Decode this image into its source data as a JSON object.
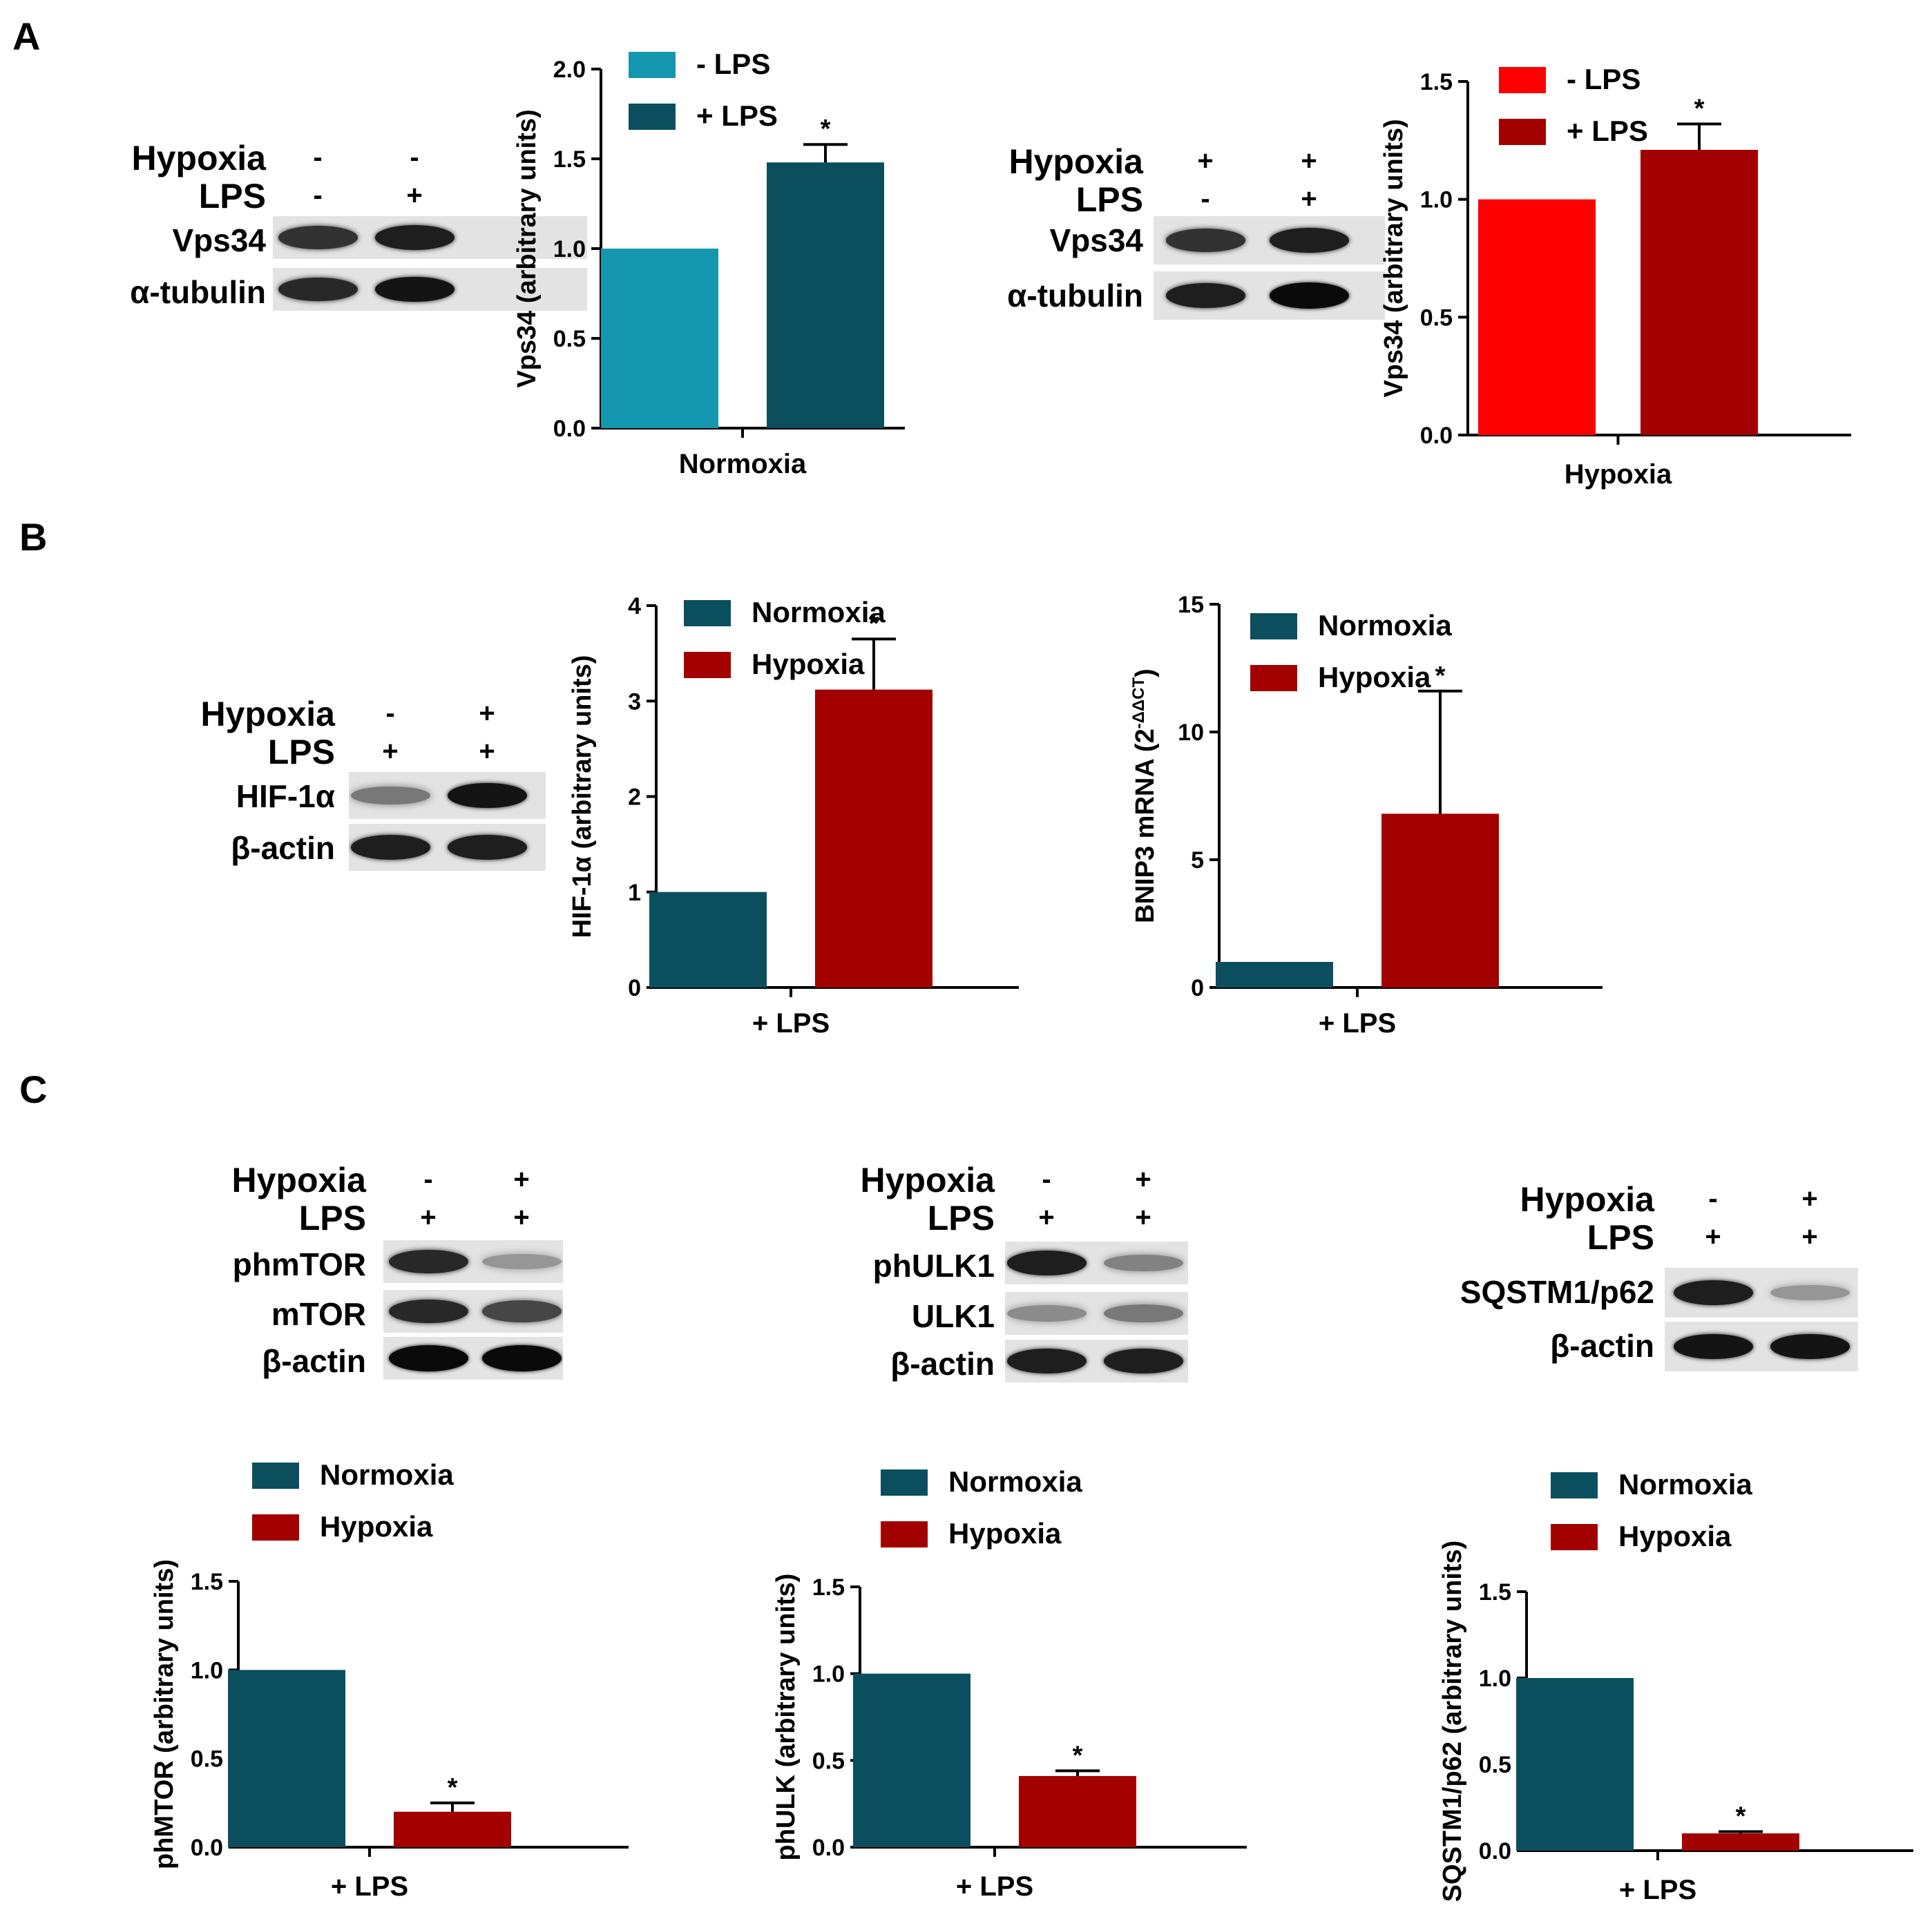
{
  "panels": {
    "A": "A",
    "B": "B",
    "C": "C"
  },
  "blots": [
    {
      "id": "blotA1",
      "conditions": [
        {
          "label": "Hypoxia",
          "signs": [
            "-",
            "-"
          ]
        },
        {
          "label": "LPS",
          "signs": [
            "-",
            "+"
          ]
        }
      ],
      "lanes": [
        {
          "label": "Vps34",
          "bands": [
            0.8,
            0.9
          ]
        },
        {
          "label": "α-tubulin",
          "bands": [
            0.85,
            0.95
          ]
        }
      ]
    },
    {
      "id": "blotA2",
      "conditions": [
        {
          "label": "Hypoxia",
          "signs": [
            "+",
            "+"
          ]
        },
        {
          "label": "LPS",
          "signs": [
            "-",
            "+"
          ]
        }
      ],
      "lanes": [
        {
          "label": "Vps34",
          "bands": [
            0.8,
            0.9
          ]
        },
        {
          "label": "α-tubulin",
          "bands": [
            0.9,
            1.0
          ]
        }
      ]
    },
    {
      "id": "blotB",
      "conditions": [
        {
          "label": "Hypoxia",
          "signs": [
            "-",
            "+"
          ]
        },
        {
          "label": "LPS",
          "signs": [
            "+",
            "+"
          ]
        }
      ],
      "lanes": [
        {
          "label": "HIF-1α",
          "bands": [
            0.45,
            0.95
          ]
        },
        {
          "label": "β-actin",
          "bands": [
            0.9,
            0.9
          ]
        }
      ]
    },
    {
      "id": "blotC1",
      "conditions": [
        {
          "label": "Hypoxia",
          "signs": [
            "-",
            "+"
          ]
        },
        {
          "label": "LPS",
          "signs": [
            "+",
            "+"
          ]
        }
      ],
      "lanes": [
        {
          "label": "phmTOR",
          "bands": [
            0.85,
            0.3
          ]
        },
        {
          "label": "mTOR",
          "bands": [
            0.85,
            0.7
          ]
        },
        {
          "label": "β-actin",
          "bands": [
            1.0,
            1.0
          ]
        }
      ]
    },
    {
      "id": "blotC2",
      "conditions": [
        {
          "label": "Hypoxia",
          "signs": [
            "-",
            "+"
          ]
        },
        {
          "label": "LPS",
          "signs": [
            "+",
            "+"
          ]
        }
      ],
      "lanes": [
        {
          "label": "phULK1",
          "bands": [
            0.9,
            0.4
          ]
        },
        {
          "label": "ULK1",
          "bands": [
            0.35,
            0.45
          ]
        },
        {
          "label": "β-actin",
          "bands": [
            0.9,
            0.9
          ]
        }
      ]
    },
    {
      "id": "blotC3",
      "conditions": [
        {
          "label": "Hypoxia",
          "signs": [
            "-",
            "+"
          ]
        },
        {
          "label": "LPS",
          "signs": [
            "+",
            "+"
          ]
        }
      ],
      "lanes": [
        {
          "label": "SQSTM1/p62",
          "bands": [
            0.9,
            0.3
          ]
        },
        {
          "label": "β-actin",
          "bands": [
            0.95,
            0.95
          ]
        }
      ]
    }
  ],
  "chart_data": [
    {
      "id": "chartA1",
      "type": "bar",
      "xlabel": "Normoxia",
      "ylabel": "Vps34 (arbitrary units)",
      "ylim": [
        0,
        2.0
      ],
      "yticks": [
        "0.0",
        "0.5",
        "1.0",
        "1.5",
        "2.0"
      ],
      "tick_values": [
        0,
        0.5,
        1.0,
        1.5,
        2.0
      ],
      "bars": [
        {
          "name": "- LPS",
          "value": 1.0,
          "error": 0,
          "color": "#1597b0",
          "sig": ""
        },
        {
          "name": "+ LPS",
          "value": 1.48,
          "error": 0.1,
          "color": "#0b4f5e",
          "sig": "*"
        }
      ]
    },
    {
      "id": "chartA2",
      "type": "bar",
      "xlabel": "Hypoxia",
      "ylabel": "Vps34 (arbitrary units)",
      "ylim": [
        0,
        1.5
      ],
      "yticks": [
        "0.0",
        "0.5",
        "1.0",
        "1.5"
      ],
      "tick_values": [
        0,
        0.5,
        1.0,
        1.5
      ],
      "bars": [
        {
          "name": "- LPS",
          "value": 1.0,
          "error": 0,
          "color": "#ff0000",
          "sig": ""
        },
        {
          "name": "+ LPS",
          "value": 1.21,
          "error": 0.11,
          "color": "#a30000",
          "sig": "*"
        }
      ]
    },
    {
      "id": "chartB1",
      "type": "bar",
      "xlabel": "+ LPS",
      "ylabel": "HIF-1α (arbitrary units)",
      "ylim": [
        0,
        4
      ],
      "yticks": [
        "0",
        "1",
        "2",
        "3",
        "4"
      ],
      "tick_values": [
        0,
        1,
        2,
        3,
        4
      ],
      "bars": [
        {
          "name": "Normoxia",
          "value": 1.0,
          "error": 0,
          "color": "#0b4f5e",
          "sig": ""
        },
        {
          "name": "Hypoxia",
          "value": 3.12,
          "error": 0.53,
          "color": "#a30000",
          "sig": "*"
        }
      ]
    },
    {
      "id": "chartB2",
      "type": "bar",
      "xlabel": "+ LPS",
      "ylabel": "BNIP3 mRNA (2",
      "ylabel_sup": "-ΔΔCT",
      "ylabel_end": ")",
      "ylim": [
        0,
        15
      ],
      "yticks": [
        "0",
        "5",
        "10",
        "15"
      ],
      "tick_values": [
        0,
        5,
        10,
        15
      ],
      "bars": [
        {
          "name": "Normoxia",
          "value": 1.0,
          "error": 0,
          "color": "#0b4f5e",
          "sig": ""
        },
        {
          "name": "Hypoxia",
          "value": 6.8,
          "error": 4.8,
          "color": "#a30000",
          "sig": "*"
        }
      ]
    },
    {
      "id": "chartC1",
      "type": "bar",
      "xlabel": "+ LPS",
      "ylabel": "phMTOR (arbitrary units)",
      "ylim": [
        0,
        1.5
      ],
      "yticks": [
        "0.0",
        "0.5",
        "1.0",
        "1.5"
      ],
      "tick_values": [
        0,
        0.5,
        1.0,
        1.5
      ],
      "bars": [
        {
          "name": "Normoxia",
          "value": 1.0,
          "error": 0,
          "color": "#0b4f5e",
          "sig": ""
        },
        {
          "name": "Hypoxia",
          "value": 0.2,
          "error": 0.05,
          "color": "#a30000",
          "sig": "*"
        }
      ]
    },
    {
      "id": "chartC2",
      "type": "bar",
      "xlabel": "+ LPS",
      "ylabel": "phULK (arbitrary units)",
      "ylim": [
        0,
        1.5
      ],
      "yticks": [
        "0.0",
        "0.5",
        "1.0",
        "1.5"
      ],
      "tick_values": [
        0,
        0.5,
        1.0,
        1.5
      ],
      "bars": [
        {
          "name": "Normoxia",
          "value": 1.0,
          "error": 0,
          "color": "#0b4f5e",
          "sig": ""
        },
        {
          "name": "Hypoxia",
          "value": 0.41,
          "error": 0.03,
          "color": "#a30000",
          "sig": "*"
        }
      ]
    },
    {
      "id": "chartC3",
      "type": "bar",
      "xlabel": "+ LPS",
      "ylabel": "SQSTM1/p62 (arbitrary units)",
      "ylim": [
        0,
        1.5
      ],
      "yticks": [
        "0.0",
        "0.5",
        "1.0",
        "1.5"
      ],
      "tick_values": [
        0,
        0.5,
        1.0,
        1.5
      ],
      "bars": [
        {
          "name": "Normoxia",
          "value": 1.0,
          "error": 0,
          "color": "#0b4f5e",
          "sig": ""
        },
        {
          "name": "Hypoxia",
          "value": 0.1,
          "error": 0.01,
          "color": "#a30000",
          "sig": "*"
        }
      ]
    }
  ]
}
